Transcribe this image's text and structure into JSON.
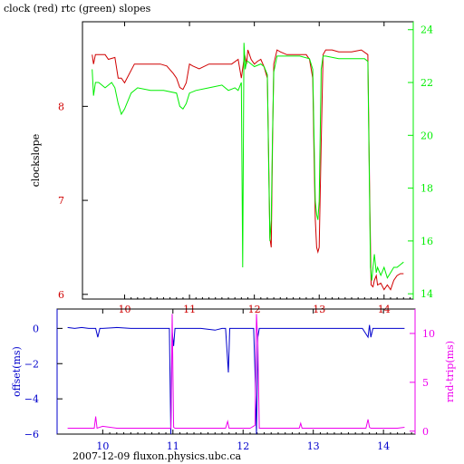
{
  "title": "clock (red) rtc (green) slopes",
  "footer": "2007-12-09 fluxon.physics.ubc.ca",
  "colors": {
    "clock": "#d00000",
    "rtc": "#00ee00",
    "offset": "#0000cc",
    "rndtrip": "#ee00ee",
    "axis": "#000000"
  },
  "chart_data": [
    {
      "type": "line",
      "title": "clock (red) rtc (green) slopes",
      "ylabel": "clockslope",
      "y2label": "",
      "xlim": [
        9.35,
        14.45
      ],
      "ylim": [
        5.95,
        8.9
      ],
      "y2lim": [
        13.8,
        24.3
      ],
      "xticks": [
        10,
        11,
        12,
        13,
        14
      ],
      "yticks": [
        6,
        7,
        8
      ],
      "y2ticks": [
        14,
        16,
        18,
        20,
        22,
        24
      ],
      "grid": false,
      "series": [
        {
          "name": "clock",
          "axis": "left",
          "x": [
            9.5,
            9.52,
            9.55,
            9.7,
            9.75,
            9.85,
            9.9,
            9.95,
            10.0,
            10.15,
            10.3,
            10.55,
            10.65,
            10.75,
            10.8,
            10.85,
            10.9,
            10.95,
            11.0,
            11.05,
            11.15,
            11.3,
            11.5,
            11.65,
            11.75,
            11.8,
            11.83,
            11.85,
            11.88,
            11.9,
            11.95,
            12.0,
            12.05,
            12.1,
            12.15,
            12.2,
            12.22,
            12.24,
            12.26,
            12.28,
            12.3,
            12.35,
            12.4,
            12.5,
            12.6,
            12.7,
            12.8,
            12.85,
            12.9,
            12.92,
            12.94,
            12.96,
            12.98,
            13.0,
            13.03,
            13.06,
            13.1,
            13.2,
            13.3,
            13.5,
            13.65,
            13.75,
            13.78,
            13.8,
            13.83,
            13.85,
            13.88,
            13.9,
            13.95,
            14.0,
            14.05,
            14.1,
            14.15,
            14.2,
            14.25,
            14.3
          ],
          "values": [
            8.55,
            8.45,
            8.55,
            8.55,
            8.5,
            8.52,
            8.3,
            8.3,
            8.25,
            8.45,
            8.45,
            8.45,
            8.43,
            8.35,
            8.3,
            8.2,
            8.18,
            8.25,
            8.45,
            8.43,
            8.4,
            8.45,
            8.45,
            8.45,
            8.5,
            8.3,
            8.45,
            8.55,
            8.45,
            8.6,
            8.5,
            8.45,
            8.48,
            8.5,
            8.42,
            8.3,
            7.5,
            6.6,
            6.5,
            7.6,
            8.45,
            8.6,
            8.58,
            8.55,
            8.55,
            8.55,
            8.55,
            8.5,
            8.3,
            7.5,
            6.8,
            6.5,
            6.45,
            6.5,
            7.6,
            8.55,
            8.6,
            8.6,
            8.58,
            8.58,
            8.6,
            8.55,
            7.0,
            6.1,
            6.08,
            6.15,
            6.2,
            6.1,
            6.12,
            6.05,
            6.1,
            6.05,
            6.15,
            6.2,
            6.22,
            6.22
          ]
        },
        {
          "name": "rtc",
          "axis": "right",
          "x": [
            9.5,
            9.52,
            9.55,
            9.6,
            9.7,
            9.8,
            9.85,
            9.9,
            9.95,
            10.0,
            10.1,
            10.2,
            10.4,
            10.6,
            10.8,
            10.85,
            10.9,
            10.95,
            11.0,
            11.1,
            11.3,
            11.5,
            11.6,
            11.7,
            11.75,
            11.8,
            11.82,
            11.84,
            11.86,
            11.88,
            11.9,
            11.95,
            12.0,
            12.1,
            12.15,
            12.2,
            12.22,
            12.24,
            12.26,
            12.28,
            12.3,
            12.35,
            12.5,
            12.7,
            12.85,
            12.9,
            12.92,
            12.94,
            12.96,
            12.98,
            13.0,
            13.03,
            13.06,
            13.1,
            13.3,
            13.5,
            13.7,
            13.75,
            13.77,
            13.79,
            13.81,
            13.83,
            13.85,
            13.88,
            13.9,
            13.95,
            14.0,
            14.05,
            14.1,
            14.15,
            14.2,
            14.25,
            14.3
          ],
          "values": [
            22.5,
            21.5,
            22.0,
            22.0,
            21.8,
            22.0,
            21.8,
            21.2,
            20.8,
            21.0,
            21.6,
            21.8,
            21.7,
            21.7,
            21.6,
            21.1,
            21.0,
            21.2,
            21.6,
            21.7,
            21.8,
            21.9,
            21.7,
            21.8,
            21.7,
            22.0,
            15.0,
            23.5,
            22.5,
            22.8,
            22.8,
            22.7,
            22.6,
            22.7,
            22.6,
            22.3,
            19.0,
            16.0,
            16.8,
            20.0,
            22.4,
            23.0,
            23.0,
            23.0,
            22.9,
            22.5,
            20.0,
            17.5,
            17.0,
            16.8,
            17.5,
            22.5,
            23.0,
            23.0,
            22.9,
            22.9,
            22.9,
            22.8,
            19.0,
            15.0,
            14.5,
            15.0,
            15.5,
            14.8,
            15.0,
            14.7,
            15.0,
            14.6,
            14.8,
            15.0,
            15.0,
            15.1,
            15.2
          ]
        }
      ]
    },
    {
      "type": "line",
      "ylabel": "offset(ms)",
      "y2label": "rnd-trip(ms)",
      "xlim": [
        9.35,
        14.45
      ],
      "ylim": [
        -6,
        1.1
      ],
      "y2lim": [
        -0.3,
        12.5
      ],
      "xticks": [
        10,
        11,
        12,
        13,
        14
      ],
      "yticks": [
        0,
        -2,
        -4,
        -6
      ],
      "y2ticks": [
        0,
        5,
        10
      ],
      "grid": false,
      "series": [
        {
          "name": "offset",
          "axis": "left",
          "x": [
            9.5,
            9.6,
            9.7,
            9.8,
            9.9,
            9.93,
            9.96,
            10.0,
            10.2,
            10.4,
            10.6,
            10.8,
            10.95,
            10.97,
            10.99,
            11.01,
            11.03,
            11.2,
            11.4,
            11.6,
            11.7,
            11.75,
            11.77,
            11.79,
            11.81,
            11.9,
            12.0,
            12.1,
            12.15,
            12.17,
            12.19,
            12.21,
            12.23,
            12.3,
            12.5,
            12.7,
            12.9,
            13.1,
            13.3,
            13.5,
            13.7,
            13.78,
            13.8,
            13.82,
            13.85,
            13.9,
            14.0,
            14.1,
            14.2,
            14.3
          ],
          "values": [
            0.05,
            0.0,
            0.05,
            0.0,
            0.0,
            -0.5,
            0.0,
            0.0,
            0.05,
            0.0,
            0.0,
            0.0,
            0.0,
            -6.0,
            -0.2,
            -1.0,
            0.0,
            0.0,
            0.0,
            -0.1,
            0.0,
            0.0,
            -1.2,
            -2.5,
            0.0,
            0.0,
            0.0,
            0.0,
            0.0,
            -2.5,
            -6.0,
            -0.5,
            0.0,
            0.0,
            0.0,
            0.0,
            0.0,
            0.0,
            0.0,
            0.0,
            0.0,
            -0.5,
            0.2,
            -0.5,
            0.0,
            0.0,
            0.0,
            0.0,
            0.0,
            0.0
          ]
        },
        {
          "name": "rndtrip",
          "axis": "right",
          "x": [
            9.5,
            9.7,
            9.88,
            9.9,
            9.92,
            10.0,
            10.2,
            10.4,
            10.55,
            10.6,
            10.8,
            10.97,
            10.99,
            11.01,
            11.03,
            11.2,
            11.4,
            11.6,
            11.75,
            11.78,
            11.8,
            12.0,
            12.1,
            12.17,
            12.19,
            12.21,
            12.23,
            12.3,
            12.5,
            12.7,
            12.8,
            12.82,
            12.84,
            13.0,
            13.2,
            13.4,
            13.6,
            13.75,
            13.78,
            13.8,
            13.82,
            13.9,
            14.0,
            14.1,
            14.2,
            14.3
          ],
          "values": [
            0.3,
            0.3,
            0.3,
            1.5,
            0.3,
            0.5,
            0.3,
            0.3,
            0.3,
            0.3,
            0.3,
            0.3,
            12.0,
            0.4,
            0.3,
            0.3,
            0.3,
            0.3,
            0.3,
            1.0,
            0.3,
            0.3,
            0.3,
            0.6,
            12.0,
            9.0,
            0.3,
            0.3,
            0.3,
            0.3,
            0.3,
            0.8,
            0.3,
            0.3,
            0.3,
            0.3,
            0.3,
            0.3,
            1.2,
            0.4,
            0.3,
            0.3,
            0.3,
            0.3,
            0.3,
            0.4
          ]
        }
      ]
    }
  ]
}
